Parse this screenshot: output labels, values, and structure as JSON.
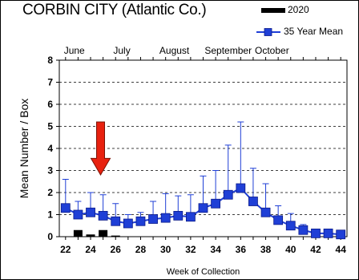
{
  "title": "CORBIN CITY (Atlantic Co.)",
  "legend": [
    {
      "label": "2020",
      "color": "#000000",
      "kind": "bar"
    },
    {
      "label": "35 Year Mean",
      "color": "#1f3fd6",
      "kind": "line"
    }
  ],
  "chart_data": {
    "type": "bar+line",
    "xlabel": "Week of Collection",
    "ylabel": "Mean Number / Box",
    "xlim": [
      21.5,
      44.5
    ],
    "ylim": [
      0,
      8
    ],
    "yticks": [
      0,
      1,
      2,
      3,
      4,
      5,
      6,
      7,
      8
    ],
    "xticks": [
      22,
      24,
      26,
      28,
      30,
      32,
      34,
      36,
      38,
      40,
      42,
      44
    ],
    "grid": "horizontal dashed",
    "months": [
      {
        "label": "June",
        "week": 22.7
      },
      {
        "label": "July",
        "week": 26.5
      },
      {
        "label": "August",
        "week": 30.7
      },
      {
        "label": "September",
        "week": 35.0
      },
      {
        "label": "October",
        "week": 38.5
      }
    ],
    "arrow_week": 24.8,
    "series": [
      {
        "name": "2020",
        "kind": "bar",
        "x": [
          23,
          24,
          25,
          26
        ],
        "values": [
          0.3,
          0.1,
          0.3,
          0.05
        ]
      },
      {
        "name": "35 Year Mean",
        "kind": "line",
        "x": [
          22,
          23,
          24,
          25,
          26,
          27,
          28,
          29,
          30,
          31,
          32,
          33,
          34,
          35,
          36,
          37,
          38,
          39,
          40,
          41,
          42,
          43,
          44
        ],
        "values": [
          1.3,
          1.0,
          1.1,
          0.95,
          0.7,
          0.6,
          0.7,
          0.8,
          0.85,
          0.95,
          0.9,
          1.3,
          1.5,
          1.9,
          2.2,
          1.6,
          1.1,
          0.75,
          0.5,
          0.3,
          0.15,
          0.15,
          0.1
        ],
        "error_upper": [
          2.6,
          1.6,
          2.0,
          1.9,
          1.5,
          1.0,
          1.1,
          1.6,
          1.95,
          1.85,
          1.9,
          2.75,
          3.0,
          4.15,
          5.2,
          3.1,
          2.4,
          1.4,
          1.05,
          0.55,
          0.3,
          0.3,
          0.25
        ]
      }
    ]
  }
}
